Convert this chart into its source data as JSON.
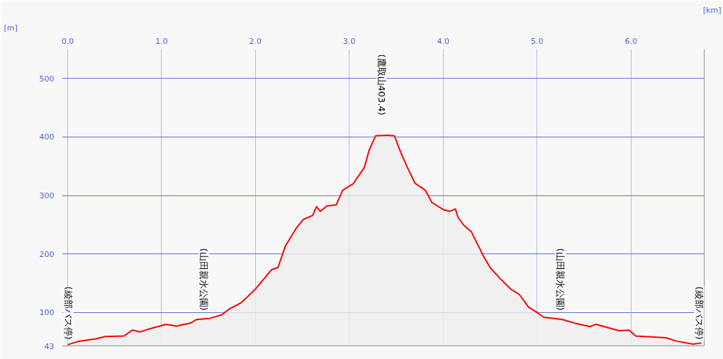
{
  "chart_data": {
    "type": "area",
    "xlabel": "[km]",
    "ylabel": "[m]",
    "x": [
      0,
      0.12,
      0.3,
      0.4,
      0.6,
      0.69,
      0.77,
      0.89,
      1.05,
      1.16,
      1.31,
      1.37,
      1.51,
      1.64,
      1.72,
      1.84,
      1.89,
      2.0,
      2.17,
      2.24,
      2.32,
      2.43,
      2.51,
      2.61,
      2.65,
      2.69,
      2.76,
      2.86,
      2.93,
      3.04,
      3.16,
      3.21,
      3.28,
      3.4,
      3.48,
      3.55,
      3.61,
      3.7,
      3.81,
      3.88,
      4.0,
      4.07,
      4.13,
      4.16,
      4.22,
      4.3,
      4.43,
      4.5,
      4.6,
      4.72,
      4.81,
      4.91,
      5.01,
      5.07,
      5.27,
      5.42,
      5.56,
      5.63,
      5.87,
      5.98,
      6.05,
      6.37,
      6.49,
      6.66,
      6.75
    ],
    "series": [
      {
        "color": "#ff0000",
        "values": [
          45,
          51,
          55,
          59,
          60,
          70,
          67,
          73,
          80,
          77,
          82,
          88,
          90,
          96,
          106,
          116,
          123,
          140,
          173,
          177,
          214,
          243,
          259,
          266,
          281,
          273,
          282,
          284,
          309,
          320,
          348,
          377,
          402,
          403,
          402,
          373,
          351,
          321,
          309,
          288,
          276,
          273,
          277,
          262,
          249,
          238,
          196,
          177,
          159,
          140,
          131,
          109,
          99,
          92,
          88,
          81,
          76,
          80,
          69,
          70,
          60,
          57,
          51,
          46,
          48
        ]
      }
    ],
    "xlim": [
      -0.06,
      6.78
    ],
    "ylim": [
      43,
      550
    ],
    "xticks": [
      {
        "value": 0,
        "label": "0.0"
      },
      {
        "value": 1,
        "label": "1.0"
      },
      {
        "value": 2,
        "label": "2.0"
      },
      {
        "value": 3,
        "label": "3.0"
      },
      {
        "value": 4,
        "label": "4.0"
      },
      {
        "value": 5,
        "label": "5.0"
      },
      {
        "value": 6,
        "label": "6.0"
      }
    ],
    "yticks": [
      43,
      100,
      200,
      300,
      400,
      500
    ],
    "grid": true,
    "annotations": [
      "(綾部バス停)",
      "(山田親水公園)",
      "(鷹取山403.4)",
      "(山田親水公園)",
      "(綾部バス停)"
    ]
  }
}
